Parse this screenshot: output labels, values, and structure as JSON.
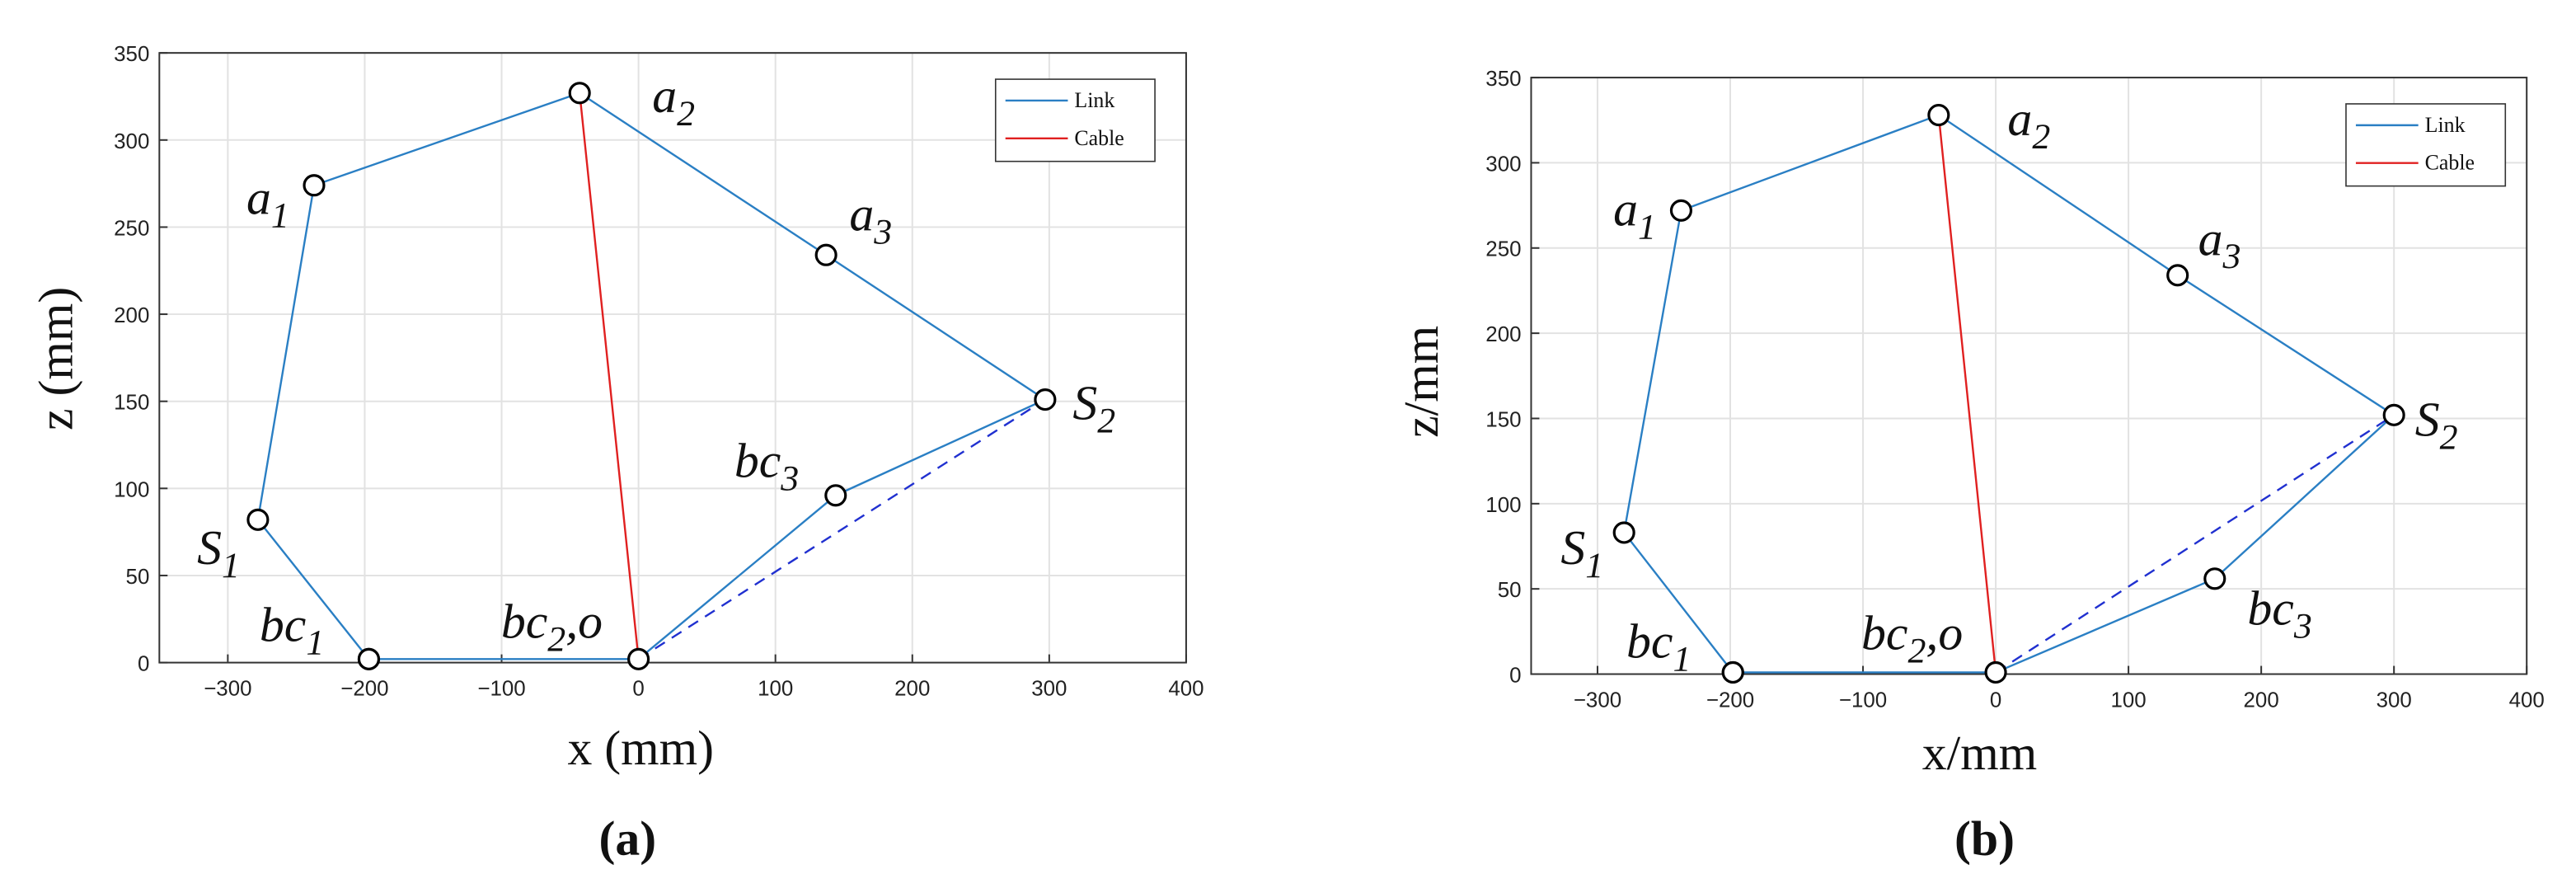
{
  "chart_data": [
    {
      "type": "line",
      "panel": "(a)",
      "xlabel": "x (mm)",
      "ylabel": "z (mm)",
      "xlim": [
        -350,
        400
      ],
      "ylim": [
        0,
        350
      ],
      "xticks": [
        {
          "value": -300,
          "label": "−300"
        },
        {
          "value": -200,
          "label": "−200"
        },
        {
          "value": -100,
          "label": "−100"
        },
        0,
        100,
        200,
        300,
        400
      ],
      "yticks": [
        0,
        50,
        100,
        150,
        200,
        250,
        300,
        350
      ],
      "grid": true,
      "series": [
        {
          "name": "Link",
          "color": "#2a7fc4",
          "x": [
            -197,
            -278,
            -237,
            -43,
            137,
            297,
            144,
            0,
            -197
          ],
          "values": [
            2,
            82,
            274,
            327,
            234,
            151,
            96,
            2,
            2
          ]
        },
        {
          "name": "Cable",
          "color": "#e02020",
          "x": [
            -43,
            0
          ],
          "values": [
            327,
            2
          ]
        },
        {
          "color": "#2030d0",
          "dashed": true,
          "x": [
            0,
            297
          ],
          "values": [
            2,
            151
          ]
        }
      ],
      "annotations": [
        {
          "text": "a",
          "sub": "1"
        },
        {
          "text": "a",
          "sub": "2"
        },
        {
          "text": "a",
          "sub": "3"
        },
        {
          "text": "S",
          "sub": "2"
        },
        {
          "text": "bc",
          "sub": "3"
        },
        {
          "text": "S",
          "sub": "1"
        },
        {
          "text": "bc",
          "sub": "1"
        },
        {
          "text": "bc",
          "sub": "2",
          "post": ",o"
        }
      ]
    },
    {
      "type": "line",
      "panel": "(b)",
      "xlabel": "x/mm",
      "ylabel": "z/mm",
      "xlim": [
        -350,
        400
      ],
      "ylim": [
        0,
        350
      ],
      "xticks": [
        {
          "value": -300,
          "label": "−300"
        },
        {
          "value": -200,
          "label": "−200"
        },
        {
          "value": -100,
          "label": "−100"
        },
        0,
        100,
        200,
        300,
        400
      ],
      "yticks": [
        0,
        50,
        100,
        150,
        200,
        250,
        300,
        350
      ],
      "grid": true,
      "series": [
        {
          "name": "Link",
          "color": "#2a7fc4",
          "x": [
            -198,
            -280,
            -237,
            -43,
            137,
            300,
            165,
            0,
            -198
          ],
          "values": [
            1,
            83,
            272,
            328,
            234,
            152,
            56,
            1,
            1
          ]
        },
        {
          "name": "Cable",
          "color": "#e02020",
          "x": [
            -43,
            0
          ],
          "values": [
            328,
            1
          ]
        },
        {
          "color": "#2030d0",
          "dashed": true,
          "x": [
            0,
            300
          ],
          "values": [
            1,
            152
          ]
        }
      ],
      "annotations": [
        {
          "text": "a",
          "sub": "1"
        },
        {
          "text": "a",
          "sub": "2"
        },
        {
          "text": "a",
          "sub": "3"
        },
        {
          "text": "S",
          "sub": "2"
        },
        {
          "text": "bc",
          "sub": "3"
        },
        {
          "text": "S",
          "sub": "1"
        },
        {
          "text": "bc",
          "sub": "1"
        },
        {
          "text": "bc",
          "sub": "2",
          "post": ",o"
        }
      ]
    }
  ]
}
